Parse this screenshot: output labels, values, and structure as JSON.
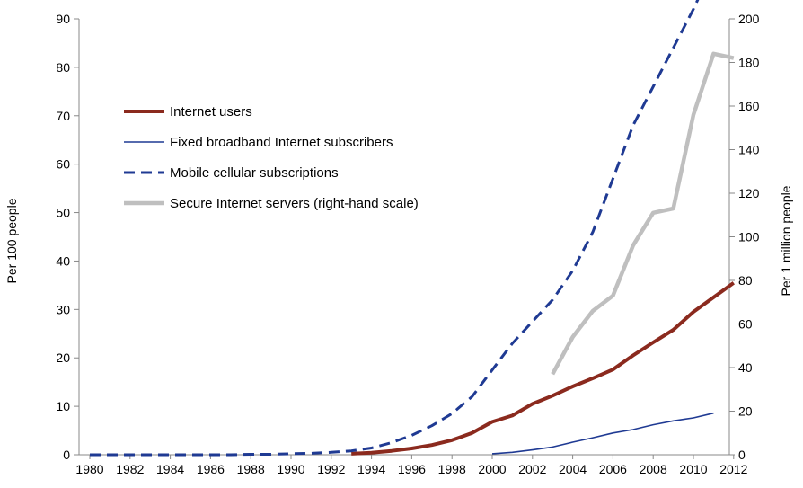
{
  "chart_data": {
    "type": "line",
    "x": [
      1980,
      1981,
      1982,
      1983,
      1984,
      1985,
      1986,
      1987,
      1988,
      1989,
      1990,
      1991,
      1992,
      1993,
      1994,
      1995,
      1996,
      1997,
      1998,
      1999,
      2000,
      2001,
      2002,
      2003,
      2004,
      2005,
      2006,
      2007,
      2008,
      2009,
      2010,
      2011,
      2012
    ],
    "x_tick_labels": [
      "1980",
      "1982",
      "1984",
      "1986",
      "1988",
      "1990",
      "1992",
      "1994",
      "1996",
      "1998",
      "2000",
      "2002",
      "2004",
      "2006",
      "2008",
      "2010",
      "2012"
    ],
    "ylabel": "Per 100 people",
    "y2label": "Per 1 million people",
    "ylim": [
      0,
      90
    ],
    "y2lim": [
      0,
      200
    ],
    "y_ticks": [
      0,
      10,
      20,
      30,
      40,
      50,
      60,
      70,
      80,
      90
    ],
    "y2_ticks": [
      0,
      20,
      40,
      60,
      80,
      100,
      120,
      140,
      160,
      180,
      200
    ],
    "legend_position": "upper-left",
    "grid": false,
    "series": [
      {
        "name": "Internet users",
        "axis": "left",
        "style": "solid-thick",
        "color": "#8B2A1E",
        "values": [
          null,
          null,
          null,
          null,
          null,
          null,
          null,
          null,
          null,
          null,
          null,
          null,
          null,
          0.2,
          0.4,
          0.8,
          1.3,
          2.0,
          3.0,
          4.5,
          6.8,
          8.1,
          10.5,
          12.2,
          14.1,
          15.8,
          17.6,
          20.5,
          23.2,
          25.8,
          29.5,
          32.5,
          35.5
        ]
      },
      {
        "name": "Fixed broadband Internet subscribers",
        "axis": "left",
        "style": "solid-thin",
        "color": "#1F3A93",
        "values": [
          null,
          null,
          null,
          null,
          null,
          null,
          null,
          null,
          null,
          null,
          null,
          null,
          null,
          null,
          null,
          null,
          null,
          null,
          null,
          null,
          0.2,
          0.5,
          1.0,
          1.6,
          2.6,
          3.5,
          4.5,
          5.2,
          6.2,
          7.0,
          7.6,
          8.6,
          null
        ]
      },
      {
        "name": "Mobile cellular subscriptions",
        "axis": "left",
        "style": "dashed",
        "color": "#1F3A93",
        "values": [
          0.0,
          0.0,
          0.0,
          0.0,
          0.0,
          0.0,
          0.0,
          0.0,
          0.1,
          0.1,
          0.2,
          0.3,
          0.5,
          0.8,
          1.4,
          2.5,
          4.0,
          6.0,
          8.5,
          12.0,
          17.5,
          23.0,
          27.5,
          32.0,
          38.0,
          46.0,
          57.0,
          68.0,
          76.0,
          84.0,
          92.0,
          101.0,
          null
        ]
      },
      {
        "name": "Secure Internet servers (right-hand scale)",
        "axis": "right",
        "style": "solid-gray",
        "color": "#BFBFBF",
        "values": [
          null,
          null,
          null,
          null,
          null,
          null,
          null,
          null,
          null,
          null,
          null,
          null,
          null,
          null,
          null,
          null,
          null,
          null,
          null,
          null,
          null,
          null,
          null,
          37,
          54,
          66,
          73,
          96,
          111,
          113,
          156,
          184,
          182
        ]
      }
    ]
  }
}
